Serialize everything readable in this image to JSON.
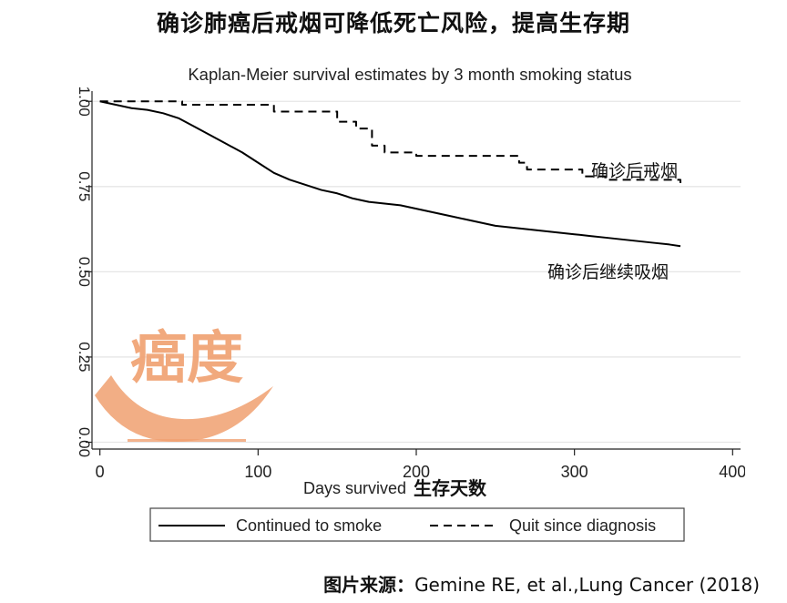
{
  "headline": "确诊肺癌后戒烟可降低死亡风险，提高生存期",
  "source": {
    "label": "图片来源：",
    "text": "Gemine RE, et al.,Lung Cancer (2018)"
  },
  "watermark": {
    "text": "癌度",
    "color": "#f0a070"
  },
  "chart_data": {
    "type": "line",
    "title": "Kaplan-Meier survival estimates by 3 month smoking status",
    "xlabel": "Days survived",
    "xlabel_cn": "生存天数",
    "ylabel": "",
    "xlim": [
      -5,
      405
    ],
    "ylim": [
      -0.02,
      1.03
    ],
    "xticks": [
      0,
      100,
      200,
      300,
      400
    ],
    "xtick_labels": [
      "0",
      "100",
      "200",
      "300",
      "400"
    ],
    "yticks": [
      0,
      0.25,
      0.5,
      0.75,
      1.0
    ],
    "ytick_labels": [
      "0.00",
      "0.25",
      "0.50",
      "0.75",
      "1.00"
    ],
    "grid": true,
    "legend_position": "bottom",
    "series": [
      {
        "name": "Continued to smoke",
        "annotation": "确诊后继续吸烟",
        "style": "solid",
        "color": "#000000",
        "x": [
          0,
          5,
          10,
          15,
          20,
          30,
          40,
          50,
          60,
          70,
          80,
          90,
          100,
          110,
          120,
          130,
          140,
          150,
          160,
          170,
          180,
          190,
          200,
          210,
          220,
          230,
          240,
          250,
          260,
          270,
          280,
          290,
          300,
          310,
          320,
          330,
          340,
          350,
          360,
          367
        ],
        "y": [
          1.0,
          0.995,
          0.99,
          0.985,
          0.98,
          0.975,
          0.965,
          0.95,
          0.925,
          0.9,
          0.875,
          0.85,
          0.82,
          0.79,
          0.77,
          0.755,
          0.74,
          0.73,
          0.715,
          0.705,
          0.7,
          0.695,
          0.685,
          0.675,
          0.665,
          0.655,
          0.645,
          0.635,
          0.63,
          0.625,
          0.62,
          0.615,
          0.61,
          0.605,
          0.6,
          0.595,
          0.59,
          0.585,
          0.58,
          0.575
        ]
      },
      {
        "name": "Quit since diagnosis",
        "annotation": "确诊后戒烟",
        "style": "dashed",
        "color": "#000000",
        "steps": [
          [
            0,
            1.0
          ],
          [
            52,
            0.99
          ],
          [
            110,
            0.97
          ],
          [
            150,
            0.94
          ],
          [
            162,
            0.92
          ],
          [
            172,
            0.87
          ],
          [
            180,
            0.85
          ],
          [
            200,
            0.84
          ],
          [
            265,
            0.82
          ],
          [
            270,
            0.8
          ],
          [
            305,
            0.78
          ],
          [
            320,
            0.77
          ],
          [
            367,
            0.76
          ]
        ]
      }
    ]
  }
}
